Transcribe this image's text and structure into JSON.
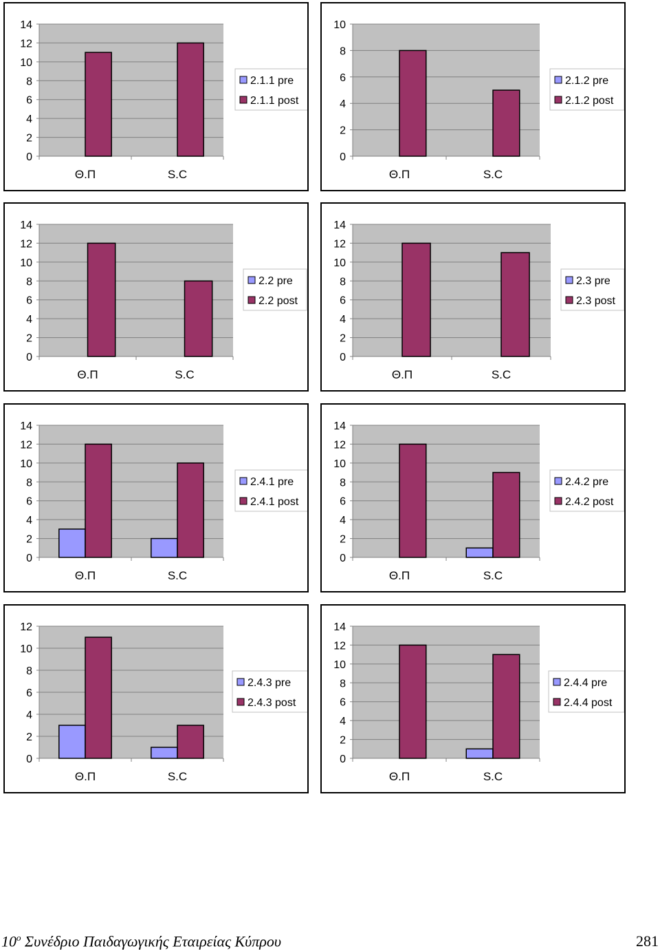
{
  "colors": {
    "pre": "#9999ff",
    "post": "#993366",
    "plot_bg": "#c0c0c0",
    "grid": "#808080"
  },
  "chart_data": [
    {
      "type": "bar",
      "categories": [
        "Θ.Π",
        "S.C"
      ],
      "ylim": [
        0,
        14
      ],
      "ystep": 2,
      "grid": true,
      "legend_position": "right",
      "series": [
        {
          "name": "2.1.1 pre",
          "values": [
            0,
            0
          ]
        },
        {
          "name": "2.1.1 post",
          "values": [
            11,
            12
          ]
        }
      ]
    },
    {
      "type": "bar",
      "categories": [
        "Θ.Π",
        "S.C"
      ],
      "ylim": [
        0,
        10
      ],
      "ystep": 2,
      "grid": true,
      "legend_position": "right",
      "series": [
        {
          "name": "2.1.2 pre",
          "values": [
            0,
            0
          ]
        },
        {
          "name": "2.1.2 post",
          "values": [
            8,
            5
          ]
        }
      ]
    },
    {
      "type": "bar",
      "categories": [
        "Θ.Π",
        "S.C"
      ],
      "ylim": [
        0,
        14
      ],
      "ystep": 2,
      "grid": true,
      "legend_position": "right",
      "series": [
        {
          "name": "2.2 pre",
          "values": [
            0,
            0
          ]
        },
        {
          "name": "2.2 post",
          "values": [
            12,
            8
          ]
        }
      ]
    },
    {
      "type": "bar",
      "categories": [
        "Θ.Π",
        "S.C"
      ],
      "ylim": [
        0,
        14
      ],
      "ystep": 2,
      "grid": true,
      "legend_position": "right",
      "series": [
        {
          "name": "2.3 pre",
          "values": [
            0,
            0
          ]
        },
        {
          "name": "2.3 post",
          "values": [
            12,
            11
          ]
        }
      ]
    },
    {
      "type": "bar",
      "categories": [
        "Θ.Π",
        "S.C"
      ],
      "ylim": [
        0,
        14
      ],
      "ystep": 2,
      "grid": true,
      "legend_position": "right",
      "series": [
        {
          "name": "2.4.1 pre",
          "values": [
            3,
            2
          ]
        },
        {
          "name": "2.4.1 post",
          "values": [
            12,
            10
          ]
        }
      ]
    },
    {
      "type": "bar",
      "categories": [
        "Θ.Π",
        "S.C"
      ],
      "ylim": [
        0,
        14
      ],
      "ystep": 2,
      "grid": true,
      "legend_position": "right",
      "series": [
        {
          "name": "2.4.2 pre",
          "values": [
            0,
            1
          ]
        },
        {
          "name": "2.4.2 post",
          "values": [
            12,
            9
          ]
        }
      ]
    },
    {
      "type": "bar",
      "categories": [
        "Θ.Π",
        "S.C"
      ],
      "ylim": [
        0,
        12
      ],
      "ystep": 2,
      "grid": true,
      "legend_position": "right",
      "series": [
        {
          "name": "2.4.3 pre",
          "values": [
            3,
            1
          ]
        },
        {
          "name": "2.4.3 post",
          "values": [
            11,
            3
          ]
        }
      ]
    },
    {
      "type": "bar",
      "categories": [
        "Θ.Π",
        "S.C"
      ],
      "ylim": [
        0,
        14
      ],
      "ystep": 2,
      "grid": true,
      "legend_position": "right",
      "series": [
        {
          "name": "2.4.4 pre",
          "values": [
            0,
            1
          ]
        },
        {
          "name": "2.4.4 post",
          "values": [
            12,
            11
          ]
        }
      ]
    }
  ],
  "footer": {
    "ordinal": "10",
    "superscript": "ο",
    "conference": " Συνέδριο Παιδαγωγικής Εταιρείας Κύπρου",
    "page_number": "281"
  }
}
